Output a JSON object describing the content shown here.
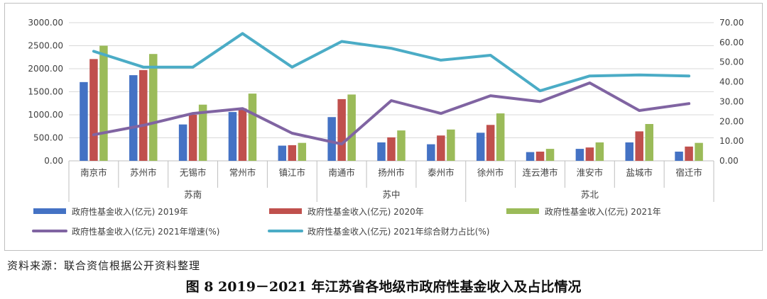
{
  "caption": "图 8   2019－2021 年江苏省各地级市政府性基金收入及占比情况",
  "source": "资料来源：联合资信根据公开资料整理",
  "chart_data": {
    "type": "bar",
    "categories": [
      "南京市",
      "苏州市",
      "无锡市",
      "常州市",
      "镇江市",
      "南通市",
      "扬州市",
      "泰州市",
      "徐州市",
      "连云港市",
      "淮安市",
      "盐城市",
      "宿迁市"
    ],
    "groups": [
      {
        "name": "苏南",
        "count": 5
      },
      {
        "name": "苏中",
        "count": 3
      },
      {
        "name": "苏北",
        "count": 5
      }
    ],
    "left_axis": {
      "min": 0,
      "max": 3000,
      "ticks": [
        "0.00",
        "500.00",
        "1000.00",
        "1500.00",
        "2000.00",
        "2500.00",
        "3000.00"
      ]
    },
    "right_axis": {
      "min": 0,
      "max": 70,
      "ticks": [
        "0.00",
        "10.00",
        "20.00",
        "30.00",
        "40.00",
        "50.00",
        "60.00",
        "70.00"
      ]
    },
    "grid": true,
    "legend_position": "bottom",
    "series": [
      {
        "name": "政府性基金收入(亿元) 2019年",
        "kind": "bar",
        "axis": "left",
        "color": "#4472C4",
        "values": [
          1710,
          1860,
          790,
          1060,
          330,
          950,
          400,
          360,
          610,
          190,
          260,
          400,
          200
        ]
      },
      {
        "name": "政府性基金收入(亿元) 2020年",
        "kind": "bar",
        "axis": "left",
        "color": "#C0504D",
        "values": [
          2210,
          1970,
          1000,
          1140,
          340,
          1340,
          510,
          550,
          780,
          200,
          290,
          640,
          310
        ]
      },
      {
        "name": "政府性基金收入(亿元) 2021年",
        "kind": "bar",
        "axis": "left",
        "color": "#9BBB59",
        "values": [
          2500,
          2320,
          1220,
          1460,
          390,
          1440,
          660,
          680,
          1030,
          260,
          400,
          800,
          390
        ]
      },
      {
        "name": "政府性基金收入(亿元) 2021年增速(%)",
        "kind": "line",
        "axis": "right",
        "color": "#8064A2",
        "values": [
          13.2,
          18.0,
          24.0,
          26.5,
          14.0,
          8.5,
          30.5,
          24.0,
          33.0,
          30.0,
          39.5,
          25.5,
          29.0
        ]
      },
      {
        "name": "政府性基金收入(亿元) 2021年综合财力占比(%)",
        "kind": "line",
        "axis": "right",
        "color": "#4BACC6",
        "values": [
          55.5,
          47.5,
          47.5,
          64.5,
          47.5,
          60.5,
          57.0,
          51.0,
          53.5,
          35.5,
          43.0,
          43.5,
          43.0
        ]
      }
    ]
  }
}
